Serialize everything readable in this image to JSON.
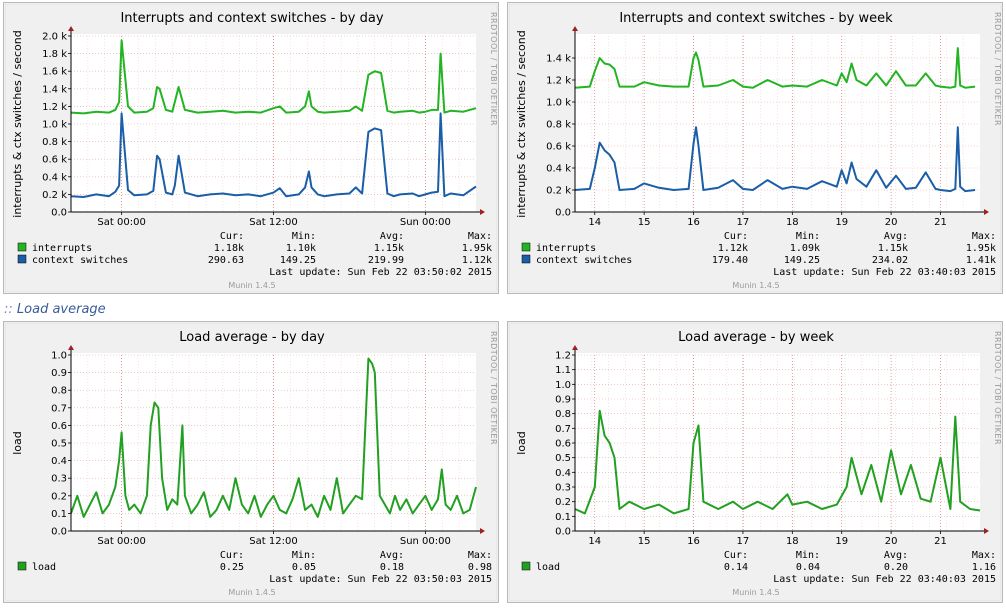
{
  "section": {
    "prefix": "::",
    "title": "Load average"
  },
  "colors": {
    "interrupts": "#22b422",
    "context_switches": "#1a5ea8",
    "load": "#22a022",
    "load_week": "#33cc33",
    "grid": "#e0b0b0",
    "axis": "#000000",
    "arrow": "#a02020",
    "frame": "#b8b8b8",
    "bg": "#f0f0f0"
  },
  "chart_data": [
    {
      "id": "interrupts-day",
      "type": "line",
      "title": "Interrupts and context switches - by day",
      "ylabel": "interrupts & ctx switches / second",
      "watermark": "RRDTOOL / TOBI OETIKER",
      "footer": "Munin 1.4.5",
      "ylim": [
        0,
        2000
      ],
      "yticks": [
        0,
        200,
        400,
        600,
        800,
        1000,
        1200,
        1400,
        1600,
        1800,
        2000
      ],
      "ytick_labels": [
        "0.0",
        "0.2 k",
        "0.4 k",
        "0.6 k",
        "0.8 k",
        "1.0 k",
        "1.2 k",
        "1.4 k",
        "1.6 k",
        "1.8 k",
        "2.0 k"
      ],
      "xlim": [
        0,
        32
      ],
      "xticks": [
        4,
        16,
        28
      ],
      "xtick_labels": [
        "Sat 00:00",
        "Sat 12:00",
        "Sun 00:00"
      ],
      "legend_headers": [
        "Cur:",
        "Min:",
        "Avg:",
        "Max:"
      ],
      "series": [
        {
          "name": "interrupts",
          "color": "#22b422",
          "stats": [
            "1.18k",
            "1.10k",
            "1.15k",
            "1.95k"
          ],
          "x": [
            0,
            1,
            2,
            3,
            3.5,
            3.8,
            4,
            4.5,
            5,
            6,
            6.5,
            6.8,
            7,
            7.5,
            8,
            8.2,
            8.5,
            9,
            10,
            11,
            12,
            13,
            14,
            15,
            16,
            16.5,
            17,
            18,
            18.5,
            18.8,
            19,
            19.5,
            20,
            21,
            22,
            22.5,
            23,
            23.5,
            24,
            24.5,
            25,
            25.5,
            26,
            27,
            27.5,
            28,
            28.5,
            29,
            29.2,
            29.5,
            30,
            31,
            32
          ],
          "values": [
            1130,
            1120,
            1140,
            1130,
            1160,
            1250,
            1950,
            1200,
            1130,
            1140,
            1180,
            1420,
            1400,
            1160,
            1140,
            1250,
            1420,
            1160,
            1130,
            1140,
            1150,
            1130,
            1140,
            1130,
            1180,
            1200,
            1130,
            1140,
            1200,
            1370,
            1200,
            1140,
            1130,
            1140,
            1150,
            1200,
            1150,
            1560,
            1600,
            1580,
            1150,
            1130,
            1140,
            1150,
            1130,
            1140,
            1160,
            1160,
            1800,
            1130,
            1150,
            1140,
            1180
          ]
        },
        {
          "name": "context switches",
          "color": "#1a5ea8",
          "stats": [
            "290.63",
            "149.25",
            "219.99",
            "1.12k"
          ],
          "x": [
            0,
            1,
            2,
            3,
            3.5,
            3.8,
            4,
            4.5,
            5,
            6,
            6.5,
            6.8,
            7,
            7.5,
            8,
            8.2,
            8.5,
            9,
            10,
            11,
            12,
            13,
            14,
            15,
            16,
            16.5,
            17,
            18,
            18.5,
            18.8,
            19,
            19.5,
            20,
            21,
            22,
            22.5,
            23,
            23.5,
            24,
            24.5,
            25,
            25.5,
            26,
            27,
            27.5,
            28,
            28.5,
            29,
            29.2,
            29.5,
            30,
            31,
            32
          ],
          "values": [
            180,
            170,
            200,
            180,
            230,
            300,
            1120,
            250,
            190,
            200,
            240,
            640,
            600,
            220,
            200,
            300,
            640,
            220,
            180,
            200,
            210,
            190,
            200,
            180,
            220,
            270,
            180,
            200,
            280,
            460,
            280,
            200,
            180,
            200,
            210,
            280,
            210,
            910,
            950,
            930,
            210,
            180,
            200,
            210,
            180,
            200,
            220,
            230,
            1120,
            180,
            210,
            190,
            290
          ]
        }
      ]
    },
    {
      "id": "interrupts-week",
      "type": "line",
      "title": "Interrupts and context switches - by week",
      "ylabel": "interrupts & ctx switches / second",
      "watermark": "RRDTOOL / TOBI OETIKER",
      "footer": "Munin 1.4.5",
      "ylim": [
        0,
        1600
      ],
      "yticks": [
        0,
        200,
        400,
        600,
        800,
        1000,
        1200,
        1400
      ],
      "ytick_labels": [
        "0.0",
        "0.2 k",
        "0.4 k",
        "0.6 k",
        "0.8 k",
        "1.0 k",
        "1.2 k",
        "1.4 k"
      ],
      "xlim": [
        13.6,
        21.8
      ],
      "xticks": [
        14,
        15,
        16,
        17,
        18,
        19,
        20,
        21
      ],
      "xtick_labels": [
        "14",
        "15",
        "16",
        "17",
        "18",
        "19",
        "20",
        "21"
      ],
      "legend_headers": [
        "Cur:",
        "Min:",
        "Avg:",
        "Max:"
      ],
      "series": [
        {
          "name": "interrupts",
          "color": "#22b422",
          "stats": [
            "1.12k",
            "1.09k",
            "1.15k",
            "1.95k"
          ],
          "x": [
            13.6,
            13.9,
            14.0,
            14.1,
            14.2,
            14.3,
            14.4,
            14.5,
            14.8,
            15.0,
            15.3,
            15.6,
            15.9,
            16.0,
            16.05,
            16.1,
            16.2,
            16.5,
            16.8,
            17.0,
            17.2,
            17.5,
            17.8,
            18.0,
            18.3,
            18.6,
            18.9,
            19.0,
            19.1,
            19.2,
            19.3,
            19.5,
            19.7,
            19.9,
            20.1,
            20.3,
            20.5,
            20.7,
            20.9,
            21.0,
            21.2,
            21.3,
            21.35,
            21.4,
            21.5,
            21.7
          ],
          "values": [
            1130,
            1140,
            1280,
            1400,
            1350,
            1340,
            1300,
            1140,
            1140,
            1180,
            1150,
            1140,
            1140,
            1400,
            1450,
            1380,
            1140,
            1150,
            1200,
            1140,
            1130,
            1200,
            1140,
            1150,
            1140,
            1200,
            1150,
            1260,
            1180,
            1350,
            1200,
            1150,
            1260,
            1150,
            1280,
            1150,
            1150,
            1260,
            1150,
            1140,
            1130,
            1140,
            1490,
            1150,
            1130,
            1140
          ]
        },
        {
          "name": "context switches",
          "color": "#1a5ea8",
          "stats": [
            "179.40",
            "149.25",
            "234.02",
            "1.41k"
          ],
          "x": [
            13.6,
            13.9,
            14.0,
            14.1,
            14.2,
            14.3,
            14.4,
            14.5,
            14.8,
            15.0,
            15.3,
            15.6,
            15.9,
            16.0,
            16.05,
            16.1,
            16.2,
            16.5,
            16.8,
            17.0,
            17.2,
            17.5,
            17.8,
            18.0,
            18.3,
            18.6,
            18.9,
            19.0,
            19.1,
            19.2,
            19.3,
            19.5,
            19.7,
            19.9,
            20.1,
            20.3,
            20.5,
            20.7,
            20.9,
            21.0,
            21.2,
            21.3,
            21.35,
            21.4,
            21.5,
            21.7
          ],
          "values": [
            200,
            210,
            400,
            630,
            560,
            520,
            450,
            200,
            210,
            260,
            220,
            200,
            210,
            620,
            770,
            600,
            200,
            220,
            290,
            210,
            200,
            290,
            210,
            230,
            210,
            280,
            230,
            380,
            260,
            450,
            300,
            230,
            380,
            220,
            330,
            210,
            220,
            360,
            210,
            200,
            190,
            210,
            770,
            230,
            190,
            200
          ]
        }
      ]
    },
    {
      "id": "load-day",
      "type": "line",
      "title": "Load average - by day",
      "ylabel": "load",
      "watermark": "RRDTOOL / TOBI OETIKER",
      "footer": "Munin 1.4.5",
      "ylim": [
        0,
        1.0
      ],
      "yticks": [
        0,
        0.1,
        0.2,
        0.3,
        0.4,
        0.5,
        0.6,
        0.7,
        0.8,
        0.9,
        1.0
      ],
      "ytick_labels": [
        "0.0",
        "0.1",
        "0.2",
        "0.3",
        "0.4",
        "0.5",
        "0.6",
        "0.7",
        "0.8",
        "0.9",
        "1.0"
      ],
      "xlim": [
        0,
        32
      ],
      "xticks": [
        4,
        16,
        28
      ],
      "xtick_labels": [
        "Sat 00:00",
        "Sat 12:00",
        "Sun 00:00"
      ],
      "legend_headers": [
        "Cur:",
        "Min:",
        "Avg:",
        "Max:"
      ],
      "series": [
        {
          "name": "load",
          "color": "#22a022",
          "stats": [
            "0.25",
            "0.05",
            "0.18",
            "0.98"
          ],
          "x": [
            0,
            0.5,
            1,
            1.5,
            2,
            2.5,
            3,
            3.5,
            3.8,
            4,
            4.3,
            4.6,
            5,
            5.5,
            6,
            6.3,
            6.6,
            6.9,
            7.2,
            7.6,
            8,
            8.4,
            8.8,
            9,
            9.5,
            10,
            10.5,
            11,
            11.5,
            12,
            12.5,
            13,
            13.5,
            14,
            14.5,
            15,
            15.5,
            16,
            16.5,
            17,
            17.5,
            18,
            18.5,
            19,
            19.5,
            20,
            20.5,
            21,
            21.5,
            22,
            22.5,
            23,
            23.2,
            23.5,
            23.8,
            24,
            24.4,
            24.8,
            25.2,
            25.6,
            26,
            26.5,
            27,
            27.5,
            28,
            28.5,
            29,
            29.3,
            29.6,
            30,
            30.5,
            31,
            31.5,
            32
          ],
          "values": [
            0.1,
            0.2,
            0.08,
            0.15,
            0.22,
            0.1,
            0.15,
            0.25,
            0.4,
            0.56,
            0.2,
            0.12,
            0.15,
            0.1,
            0.2,
            0.6,
            0.73,
            0.7,
            0.3,
            0.12,
            0.18,
            0.15,
            0.6,
            0.2,
            0.1,
            0.15,
            0.22,
            0.08,
            0.12,
            0.2,
            0.12,
            0.3,
            0.15,
            0.1,
            0.2,
            0.08,
            0.15,
            0.2,
            0.12,
            0.1,
            0.18,
            0.3,
            0.12,
            0.15,
            0.08,
            0.2,
            0.12,
            0.3,
            0.1,
            0.15,
            0.2,
            0.18,
            0.5,
            0.98,
            0.95,
            0.9,
            0.2,
            0.15,
            0.1,
            0.2,
            0.12,
            0.18,
            0.1,
            0.15,
            0.2,
            0.12,
            0.18,
            0.35,
            0.15,
            0.12,
            0.2,
            0.1,
            0.12,
            0.25
          ]
        }
      ]
    },
    {
      "id": "load-week",
      "type": "line",
      "title": "Load average - by week",
      "ylabel": "load",
      "watermark": "RRDTOOL / TOBI OETIKER",
      "footer": "Munin 1.4.5",
      "ylim": [
        0,
        1.2
      ],
      "yticks": [
        0,
        0.1,
        0.2,
        0.3,
        0.4,
        0.5,
        0.6,
        0.7,
        0.8,
        0.9,
        1.0,
        1.1,
        1.2
      ],
      "ytick_labels": [
        "0.0",
        "0.1",
        "0.2",
        "0.3",
        "0.4",
        "0.5",
        "0.6",
        "0.7",
        "0.8",
        "0.9",
        "1.0",
        "1.1",
        "1.2"
      ],
      "xlim": [
        13.6,
        21.8
      ],
      "xticks": [
        14,
        15,
        16,
        17,
        18,
        19,
        20,
        21
      ],
      "xtick_labels": [
        "14",
        "15",
        "16",
        "17",
        "18",
        "19",
        "20",
        "21"
      ],
      "legend_headers": [
        "Cur:",
        "Min:",
        "Avg:",
        "Max:"
      ],
      "series": [
        {
          "name": "load",
          "color": "#22a022",
          "stats": [
            "0.14",
            "0.04",
            "0.20",
            "1.16"
          ],
          "x": [
            13.6,
            13.8,
            14.0,
            14.1,
            14.2,
            14.3,
            14.4,
            14.5,
            14.7,
            15.0,
            15.3,
            15.6,
            15.9,
            16.0,
            16.1,
            16.2,
            16.5,
            16.8,
            17.0,
            17.3,
            17.6,
            17.9,
            18.0,
            18.3,
            18.6,
            18.9,
            19.1,
            19.2,
            19.4,
            19.6,
            19.8,
            20.0,
            20.2,
            20.4,
            20.6,
            20.8,
            21.0,
            21.2,
            21.3,
            21.4,
            21.6,
            21.8
          ],
          "values": [
            0.15,
            0.12,
            0.3,
            0.82,
            0.65,
            0.6,
            0.5,
            0.15,
            0.2,
            0.15,
            0.18,
            0.12,
            0.15,
            0.6,
            0.72,
            0.2,
            0.15,
            0.2,
            0.15,
            0.2,
            0.15,
            0.25,
            0.18,
            0.2,
            0.15,
            0.18,
            0.3,
            0.5,
            0.25,
            0.45,
            0.2,
            0.55,
            0.25,
            0.45,
            0.22,
            0.2,
            0.5,
            0.15,
            0.78,
            0.2,
            0.15,
            0.14
          ]
        }
      ]
    }
  ],
  "panels": [
    {
      "last_update": "Last update:  Sun Feb 22 03:50:02 2015"
    },
    {
      "last_update": "Last update:  Sun Feb 22 03:40:03 2015"
    },
    {
      "last_update": "Last update:  Sun Feb 22 03:50:03 2015"
    },
    {
      "last_update": "Last update:  Sun Feb 22 03:40:03 2015"
    }
  ]
}
